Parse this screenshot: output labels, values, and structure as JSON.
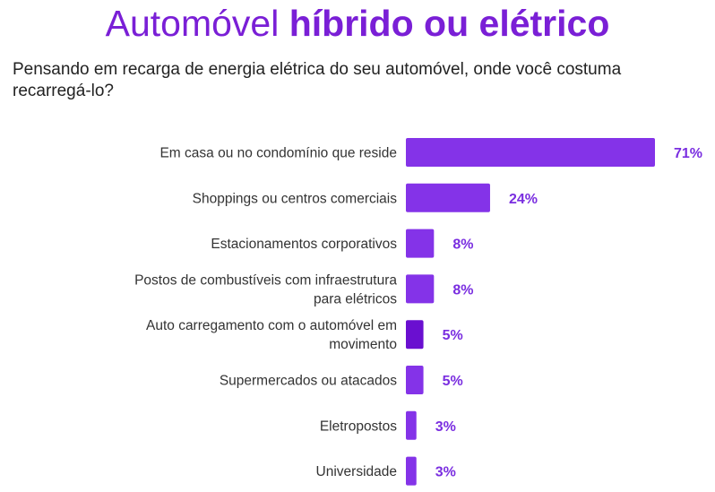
{
  "header": {
    "title_light": "Automóvel ",
    "title_bold": "híbrido ou elétrico",
    "question": "Pensando em recarga de energia elétrica do seu automóvel, onde você costuma recarregá-lo?"
  },
  "colors": {
    "title": "#7a1fd6",
    "bar_primary": "#8433e8",
    "bar_dark": "#6a0fd0",
    "value_label": "#7a2ee0"
  },
  "chart_data": {
    "type": "bar",
    "orientation": "horizontal",
    "categories": [
      [
        "Em casa ou no condomínio que reside"
      ],
      [
        "Shoppings ou centros comerciais"
      ],
      [
        "Estacionamentos corporativos"
      ],
      [
        "Postos de combustíveis com infraestrutura",
        "para elétricos"
      ],
      [
        "Auto carregamento com o automóvel em",
        "movimento"
      ],
      [
        "Supermercados ou atacados"
      ],
      [
        "Eletropostos"
      ],
      [
        "Universidade"
      ]
    ],
    "values": [
      71,
      24,
      8,
      8,
      5,
      5,
      3,
      3
    ],
    "value_labels": [
      "71%",
      "24%",
      "8%",
      "8%",
      "5%",
      "5%",
      "3%",
      "3%"
    ],
    "grid": false,
    "legend": "none"
  }
}
